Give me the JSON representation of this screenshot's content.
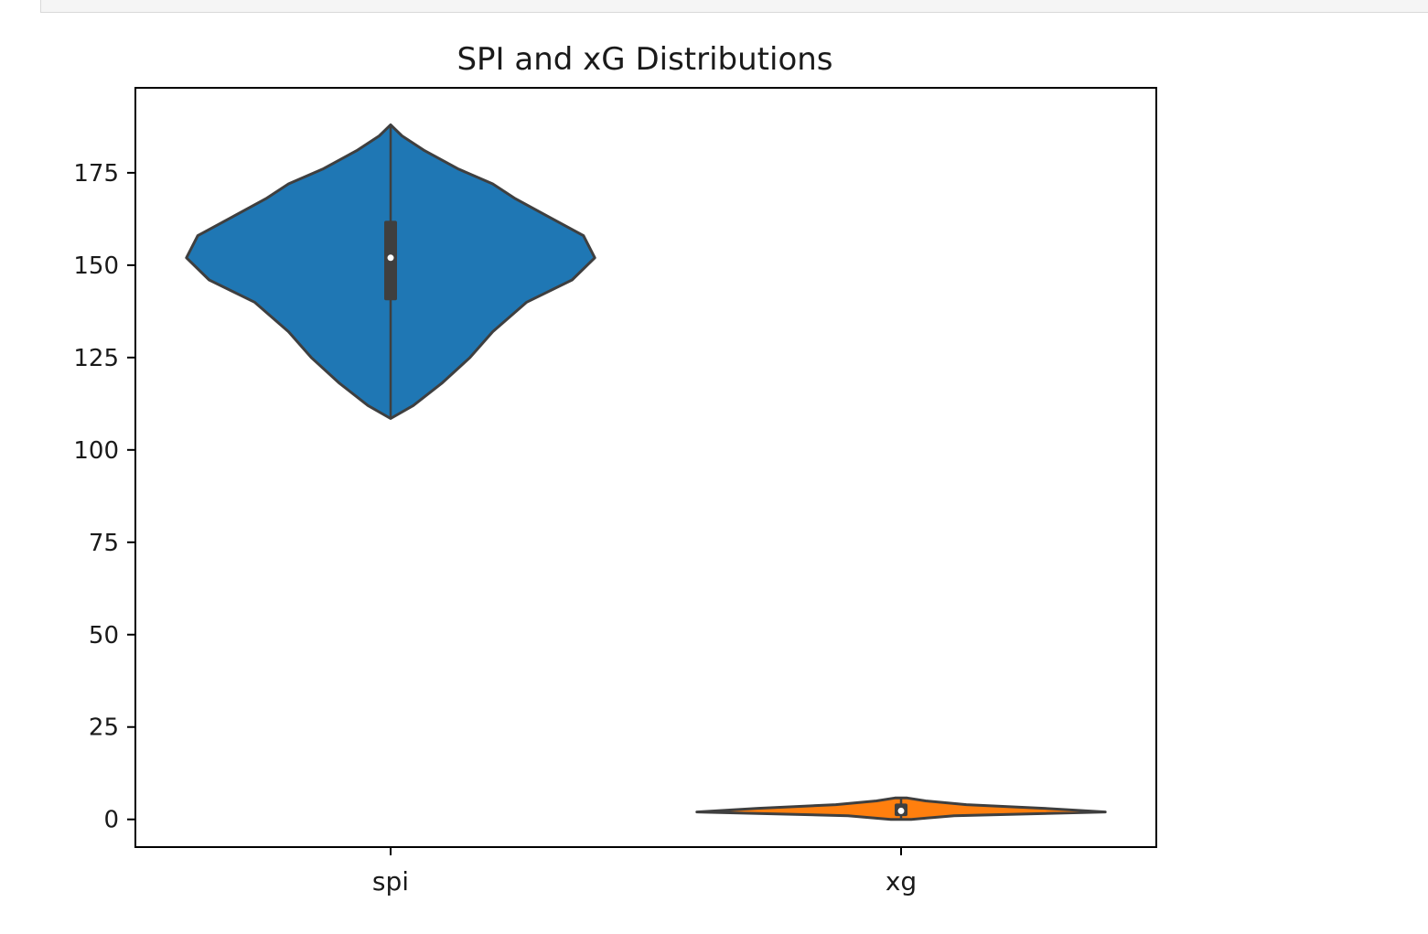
{
  "chart_data": {
    "type": "violin",
    "title": "SPI and xG Distributions",
    "xlabel": "",
    "ylabel": "",
    "categories": [
      "spi",
      "xg"
    ],
    "ylim": [
      -7.5,
      198
    ],
    "yticks": [
      0,
      25,
      50,
      75,
      100,
      125,
      150,
      175
    ],
    "grid": false,
    "violins": [
      {
        "category": "spi",
        "color": "#1f77b4",
        "min": 108.5,
        "max": 188,
        "q1": 140.5,
        "median": 152,
        "q3": 162,
        "density": [
          [
            108.5,
            0.0
          ],
          [
            112,
            0.04
          ],
          [
            118,
            0.09
          ],
          [
            125,
            0.14
          ],
          [
            132,
            0.18
          ],
          [
            140,
            0.24
          ],
          [
            146,
            0.32
          ],
          [
            152,
            0.36
          ],
          [
            158,
            0.34
          ],
          [
            163,
            0.28
          ],
          [
            168,
            0.22
          ],
          [
            172,
            0.18
          ],
          [
            176,
            0.12
          ],
          [
            181,
            0.06
          ],
          [
            185,
            0.02
          ],
          [
            188,
            0.0
          ]
        ]
      },
      {
        "category": "xg",
        "color": "#ff7f0e",
        "min": 0.0,
        "max": 5.8,
        "q1": 0.9,
        "median": 2.3,
        "q3": 4.3,
        "density": [
          [
            0.0,
            0.05
          ],
          [
            1.0,
            0.26
          ],
          [
            2.0,
            1.0
          ],
          [
            3.0,
            0.7
          ],
          [
            4.0,
            0.32
          ],
          [
            5.0,
            0.12
          ],
          [
            5.8,
            0.03
          ]
        ]
      }
    ]
  }
}
